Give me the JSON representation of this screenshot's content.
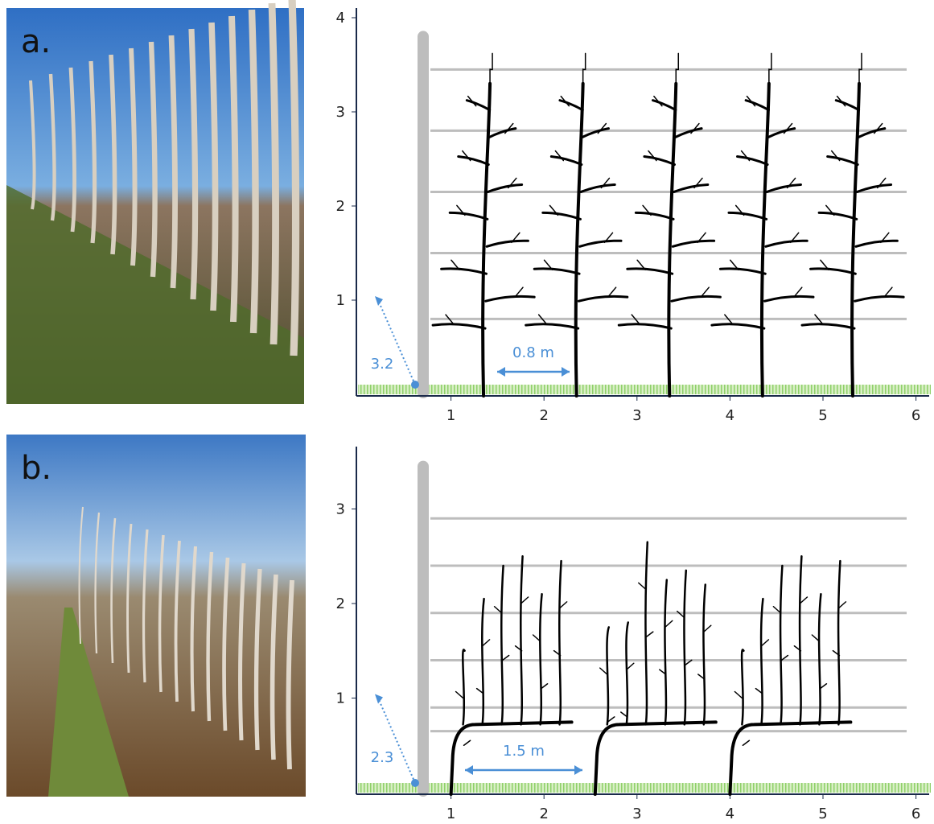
{
  "panels": [
    {
      "label": "a.",
      "x_ticks": [
        "1",
        "2",
        "3",
        "4",
        "5",
        "6"
      ],
      "y_ticks": [
        "1",
        "2",
        "3",
        "4"
      ],
      "spacing": "0.8 m",
      "height": "3.2"
    },
    {
      "label": "b.",
      "x_ticks": [
        "1",
        "2",
        "3",
        "4",
        "5",
        "6"
      ],
      "y_ticks": [
        "1",
        "2",
        "3"
      ],
      "spacing": "1.5 m",
      "height": "2.3"
    }
  ]
}
